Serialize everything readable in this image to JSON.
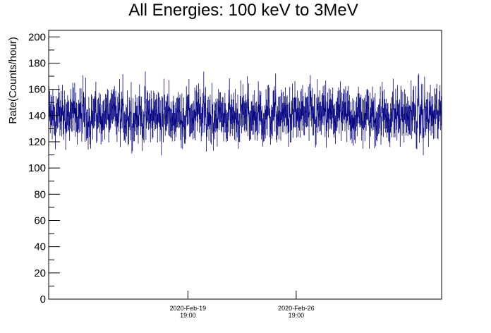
{
  "chart_data": {
    "type": "scatter",
    "title": "All Energies:  100 keV to 3MeV",
    "ylabel": "Rate(Counts/hour)",
    "xlabel": "",
    "ylim": [
      0,
      205
    ],
    "x_range_days": [
      -9,
      16.4
    ],
    "x_ticks": [
      {
        "date": "2020-Feb-19",
        "time": "19:00",
        "day": 0
      },
      {
        "date": "2020-Feb-26",
        "time": "19:00",
        "day": 7
      }
    ],
    "y_ticks": [
      0,
      20,
      40,
      60,
      80,
      100,
      120,
      140,
      160,
      180,
      200
    ],
    "series": [
      {
        "color": "#000080",
        "mean": 140,
        "points": 612,
        "typical_range": [
          115,
          165
        ]
      }
    ],
    "grid": false,
    "legend": "none"
  }
}
